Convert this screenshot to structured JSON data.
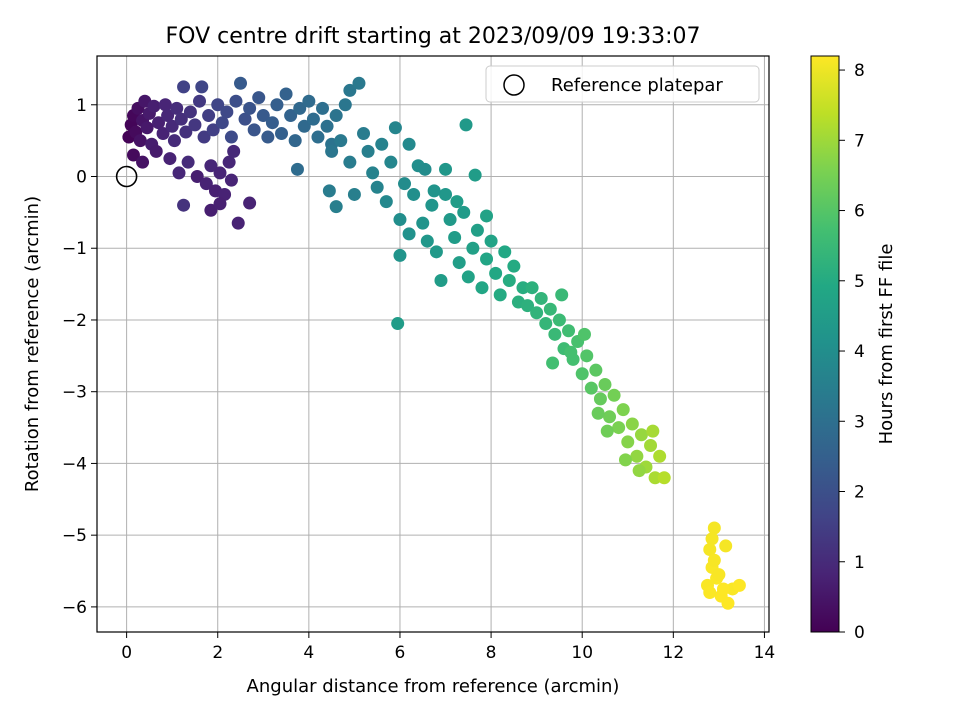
{
  "chart_data": {
    "type": "scatter",
    "title": "FOV centre drift starting at 2023/09/09 19:33:07",
    "xlabel": "Angular distance from reference (arcmin)",
    "ylabel": "Rotation from reference (arcmin)",
    "xlim": [
      -0.65,
      14.1
    ],
    "ylim": [
      -6.35,
      1.68
    ],
    "xticks": [
      "0",
      "2",
      "4",
      "6",
      "8",
      "10",
      "12",
      "14"
    ],
    "yticks": [
      "1",
      "0",
      "−1",
      "−2",
      "−3",
      "−4",
      "−5",
      "−6"
    ],
    "grid": true,
    "legend": {
      "position": "top-right",
      "entries": [
        "Reference platepar"
      ]
    },
    "reference_point": {
      "x": 0,
      "y": 0
    },
    "colorbar": {
      "label": "Hours from first FF file",
      "range": [
        0,
        8.2
      ],
      "ticks": [
        "0",
        "1",
        "2",
        "3",
        "4",
        "5",
        "6",
        "7",
        "8"
      ],
      "colormap": "viridis"
    },
    "points": [
      {
        "x": 0.05,
        "y": 0.55,
        "h": 0.05
      },
      {
        "x": 0.1,
        "y": 0.72,
        "h": 0.1
      },
      {
        "x": 0.15,
        "y": 0.85,
        "h": 0.15
      },
      {
        "x": 0.2,
        "y": 0.62,
        "h": 0.2
      },
      {
        "x": 0.25,
        "y": 0.95,
        "h": 0.3
      },
      {
        "x": 0.3,
        "y": 0.5,
        "h": 0.4
      },
      {
        "x": 0.35,
        "y": 0.78,
        "h": 0.45
      },
      {
        "x": 0.4,
        "y": 1.05,
        "h": 0.5
      },
      {
        "x": 0.45,
        "y": 0.68,
        "h": 0.55
      },
      {
        "x": 0.5,
        "y": 0.88,
        "h": 0.6
      },
      {
        "x": 0.55,
        "y": 0.45,
        "h": 0.65
      },
      {
        "x": 0.6,
        "y": 0.98,
        "h": 0.7
      },
      {
        "x": 0.7,
        "y": 0.75,
        "h": 0.75
      },
      {
        "x": 0.8,
        "y": 0.6,
        "h": 0.8
      },
      {
        "x": 0.85,
        "y": 1.0,
        "h": 0.85
      },
      {
        "x": 0.9,
        "y": 0.85,
        "h": 0.9
      },
      {
        "x": 1.0,
        "y": 0.7,
        "h": 0.95
      },
      {
        "x": 1.05,
        "y": 0.5,
        "h": 1.0
      },
      {
        "x": 1.1,
        "y": 0.95,
        "h": 1.05
      },
      {
        "x": 1.2,
        "y": 0.8,
        "h": 1.1
      },
      {
        "x": 1.25,
        "y": 1.25,
        "h": 1.6
      },
      {
        "x": 1.3,
        "y": 0.62,
        "h": 1.15
      },
      {
        "x": 1.4,
        "y": 0.9,
        "h": 1.2
      },
      {
        "x": 1.5,
        "y": 0.72,
        "h": 1.3
      },
      {
        "x": 1.6,
        "y": 1.05,
        "h": 1.35
      },
      {
        "x": 1.7,
        "y": 0.55,
        "h": 1.4
      },
      {
        "x": 1.8,
        "y": 0.85,
        "h": 1.5
      },
      {
        "x": 1.65,
        "y": 1.25,
        "h": 1.7
      },
      {
        "x": 1.9,
        "y": 0.65,
        "h": 1.55
      },
      {
        "x": 2.0,
        "y": 1.0,
        "h": 1.7
      },
      {
        "x": 2.1,
        "y": 0.75,
        "h": 1.75
      },
      {
        "x": 2.2,
        "y": 0.9,
        "h": 1.8
      },
      {
        "x": 2.3,
        "y": 0.55,
        "h": 1.85
      },
      {
        "x": 2.4,
        "y": 1.05,
        "h": 1.95
      },
      {
        "x": 2.5,
        "y": 1.3,
        "h": 2.3
      },
      {
        "x": 2.6,
        "y": 0.8,
        "h": 2.0
      },
      {
        "x": 2.7,
        "y": 0.95,
        "h": 2.1
      },
      {
        "x": 2.8,
        "y": 0.65,
        "h": 2.15
      },
      {
        "x": 2.9,
        "y": 1.1,
        "h": 2.2
      },
      {
        "x": 3.0,
        "y": 0.85,
        "h": 2.3
      },
      {
        "x": 3.1,
        "y": 0.55,
        "h": 2.35
      },
      {
        "x": 3.2,
        "y": 0.75,
        "h": 2.4
      },
      {
        "x": 3.3,
        "y": 1.0,
        "h": 2.45
      },
      {
        "x": 3.4,
        "y": 0.6,
        "h": 2.5
      },
      {
        "x": 3.5,
        "y": 1.15,
        "h": 2.55
      },
      {
        "x": 3.6,
        "y": 0.85,
        "h": 2.6
      },
      {
        "x": 3.7,
        "y": 0.5,
        "h": 2.7
      },
      {
        "x": 3.75,
        "y": 0.1,
        "h": 2.9
      },
      {
        "x": 3.8,
        "y": 0.95,
        "h": 2.75
      },
      {
        "x": 3.9,
        "y": 0.7,
        "h": 2.8
      },
      {
        "x": 4.0,
        "y": 1.05,
        "h": 2.85
      },
      {
        "x": 4.1,
        "y": 0.8,
        "h": 2.9
      },
      {
        "x": 4.2,
        "y": 0.55,
        "h": 2.95
      },
      {
        "x": 4.3,
        "y": 0.95,
        "h": 3.0
      },
      {
        "x": 4.4,
        "y": 0.7,
        "h": 3.05
      },
      {
        "x": 4.5,
        "y": 0.45,
        "h": 3.1
      },
      {
        "x": 4.6,
        "y": 0.85,
        "h": 3.15
      },
      {
        "x": 4.8,
        "y": 1.0,
        "h": 3.2
      },
      {
        "x": 4.9,
        "y": 1.2,
        "h": 3.25
      },
      {
        "x": 5.1,
        "y": 1.3,
        "h": 3.3
      },
      {
        "x": 0.15,
        "y": 0.3,
        "h": 0.2
      },
      {
        "x": 0.35,
        "y": 0.2,
        "h": 0.4
      },
      {
        "x": 0.65,
        "y": 0.35,
        "h": 0.6
      },
      {
        "x": 0.95,
        "y": 0.25,
        "h": 0.8
      },
      {
        "x": 1.15,
        "y": 0.05,
        "h": 0.9
      },
      {
        "x": 1.35,
        "y": 0.2,
        "h": 1.0
      },
      {
        "x": 1.55,
        "y": 0.0,
        "h": 0.7
      },
      {
        "x": 1.75,
        "y": -0.1,
        "h": 0.8
      },
      {
        "x": 1.85,
        "y": 0.15,
        "h": 0.9
      },
      {
        "x": 1.95,
        "y": -0.2,
        "h": 0.75
      },
      {
        "x": 2.05,
        "y": 0.05,
        "h": 0.85
      },
      {
        "x": 2.15,
        "y": -0.25,
        "h": 0.8
      },
      {
        "x": 2.25,
        "y": 0.2,
        "h": 0.9
      },
      {
        "x": 1.25,
        "y": -0.4,
        "h": 1.2
      },
      {
        "x": 1.85,
        "y": -0.47,
        "h": 0.7
      },
      {
        "x": 2.05,
        "y": -0.38,
        "h": 0.75
      },
      {
        "x": 2.45,
        "y": -0.65,
        "h": 0.8
      },
      {
        "x": 2.7,
        "y": -0.37,
        "h": 0.8
      },
      {
        "x": 2.3,
        "y": -0.05,
        "h": 0.85
      },
      {
        "x": 2.35,
        "y": 0.35,
        "h": 0.95
      },
      {
        "x": 4.5,
        "y": 0.35,
        "h": 3.2
      },
      {
        "x": 4.7,
        "y": 0.5,
        "h": 3.3
      },
      {
        "x": 4.9,
        "y": 0.2,
        "h": 3.4
      },
      {
        "x": 5.0,
        "y": -0.25,
        "h": 3.5
      },
      {
        "x": 4.45,
        "y": -0.2,
        "h": 3.4
      },
      {
        "x": 4.6,
        "y": -0.42,
        "h": 3.5
      },
      {
        "x": 5.2,
        "y": 0.6,
        "h": 3.4
      },
      {
        "x": 5.3,
        "y": 0.35,
        "h": 3.5
      },
      {
        "x": 5.4,
        "y": 0.05,
        "h": 3.6
      },
      {
        "x": 5.5,
        "y": -0.15,
        "h": 3.65
      },
      {
        "x": 5.6,
        "y": 0.45,
        "h": 3.6
      },
      {
        "x": 5.7,
        "y": -0.35,
        "h": 3.8
      },
      {
        "x": 5.8,
        "y": 0.2,
        "h": 3.75
      },
      {
        "x": 5.9,
        "y": 0.68,
        "h": 3.7
      },
      {
        "x": 6.0,
        "y": -0.6,
        "h": 4.0
      },
      {
        "x": 6.1,
        "y": -0.1,
        "h": 3.95
      },
      {
        "x": 6.2,
        "y": 0.45,
        "h": 3.85
      },
      {
        "x": 6.3,
        "y": -0.25,
        "h": 4.05
      },
      {
        "x": 6.4,
        "y": 0.15,
        "h": 4.0
      },
      {
        "x": 6.5,
        "y": -0.65,
        "h": 4.2
      },
      {
        "x": 6.6,
        "y": -0.9,
        "h": 4.3
      },
      {
        "x": 6.7,
        "y": -0.4,
        "h": 4.25
      },
      {
        "x": 6.8,
        "y": -1.05,
        "h": 4.4
      },
      {
        "x": 6.9,
        "y": -1.45,
        "h": 4.5
      },
      {
        "x": 6.0,
        "y": -1.1,
        "h": 4.2
      },
      {
        "x": 6.2,
        "y": -0.8,
        "h": 4.15
      },
      {
        "x": 5.95,
        "y": -2.05,
        "h": 4.5
      },
      {
        "x": 6.55,
        "y": 0.1,
        "h": 3.95
      },
      {
        "x": 7.0,
        "y": -0.25,
        "h": 4.3
      },
      {
        "x": 7.1,
        "y": -0.6,
        "h": 4.4
      },
      {
        "x": 7.2,
        "y": -0.85,
        "h": 4.5
      },
      {
        "x": 7.3,
        "y": -1.2,
        "h": 4.55
      },
      {
        "x": 7.4,
        "y": -0.5,
        "h": 4.45
      },
      {
        "x": 7.45,
        "y": 0.72,
        "h": 4.4
      },
      {
        "x": 7.5,
        "y": -1.4,
        "h": 4.7
      },
      {
        "x": 7.6,
        "y": -1.0,
        "h": 4.65
      },
      {
        "x": 7.7,
        "y": -0.75,
        "h": 4.6
      },
      {
        "x": 7.8,
        "y": -1.55,
        "h": 4.85
      },
      {
        "x": 7.9,
        "y": -1.15,
        "h": 4.8
      },
      {
        "x": 8.0,
        "y": -0.9,
        "h": 4.75
      },
      {
        "x": 8.1,
        "y": -1.35,
        "h": 4.9
      },
      {
        "x": 8.2,
        "y": -1.65,
        "h": 5.0
      },
      {
        "x": 8.3,
        "y": -1.05,
        "h": 4.9
      },
      {
        "x": 8.4,
        "y": -1.45,
        "h": 5.05
      },
      {
        "x": 8.5,
        "y": -1.25,
        "h": 5.0
      },
      {
        "x": 8.6,
        "y": -1.75,
        "h": 5.15
      },
      {
        "x": 8.7,
        "y": -1.55,
        "h": 5.1
      },
      {
        "x": 7.65,
        "y": 0.02,
        "h": 4.5
      },
      {
        "x": 7.9,
        "y": -0.55,
        "h": 4.7
      },
      {
        "x": 7.25,
        "y": -0.35,
        "h": 4.5
      },
      {
        "x": 7.0,
        "y": 0.1,
        "h": 4.3
      },
      {
        "x": 6.75,
        "y": -0.2,
        "h": 4.2
      },
      {
        "x": 8.8,
        "y": -1.8,
        "h": 5.2
      },
      {
        "x": 8.9,
        "y": -1.55,
        "h": 5.2
      },
      {
        "x": 9.0,
        "y": -1.9,
        "h": 5.3
      },
      {
        "x": 9.1,
        "y": -1.7,
        "h": 5.35
      },
      {
        "x": 9.2,
        "y": -2.05,
        "h": 5.4
      },
      {
        "x": 9.3,
        "y": -1.85,
        "h": 5.45
      },
      {
        "x": 9.4,
        "y": -2.2,
        "h": 5.5
      },
      {
        "x": 9.5,
        "y": -2.0,
        "h": 5.55
      },
      {
        "x": 9.6,
        "y": -2.4,
        "h": 5.6
      },
      {
        "x": 9.7,
        "y": -2.15,
        "h": 5.65
      },
      {
        "x": 9.8,
        "y": -2.55,
        "h": 5.75
      },
      {
        "x": 9.9,
        "y": -2.3,
        "h": 5.8
      },
      {
        "x": 10.0,
        "y": -2.75,
        "h": 5.9
      },
      {
        "x": 10.1,
        "y": -2.5,
        "h": 5.95
      },
      {
        "x": 10.2,
        "y": -2.95,
        "h": 6.05
      },
      {
        "x": 10.3,
        "y": -2.7,
        "h": 6.1
      },
      {
        "x": 9.35,
        "y": -2.6,
        "h": 5.7
      },
      {
        "x": 9.55,
        "y": -1.65,
        "h": 5.5
      },
      {
        "x": 9.75,
        "y": -2.45,
        "h": 5.75
      },
      {
        "x": 10.05,
        "y": -2.2,
        "h": 5.9
      },
      {
        "x": 10.4,
        "y": -3.1,
        "h": 6.25
      },
      {
        "x": 10.5,
        "y": -2.9,
        "h": 6.3
      },
      {
        "x": 10.6,
        "y": -3.35,
        "h": 6.4
      },
      {
        "x": 10.7,
        "y": -3.05,
        "h": 6.45
      },
      {
        "x": 10.8,
        "y": -3.5,
        "h": 6.55
      },
      {
        "x": 10.9,
        "y": -3.25,
        "h": 6.6
      },
      {
        "x": 11.0,
        "y": -3.7,
        "h": 6.7
      },
      {
        "x": 11.1,
        "y": -3.45,
        "h": 6.75
      },
      {
        "x": 11.2,
        "y": -3.9,
        "h": 6.85
      },
      {
        "x": 11.3,
        "y": -3.6,
        "h": 6.9
      },
      {
        "x": 11.4,
        "y": -4.05,
        "h": 7.0
      },
      {
        "x": 11.5,
        "y": -3.75,
        "h": 7.05
      },
      {
        "x": 11.6,
        "y": -4.2,
        "h": 7.15
      },
      {
        "x": 11.7,
        "y": -3.9,
        "h": 7.2
      },
      {
        "x": 11.8,
        "y": -4.2,
        "h": 7.3
      },
      {
        "x": 11.55,
        "y": -3.55,
        "h": 7.1
      },
      {
        "x": 10.55,
        "y": -3.55,
        "h": 6.4
      },
      {
        "x": 10.95,
        "y": -3.95,
        "h": 6.65
      },
      {
        "x": 11.25,
        "y": -4.1,
        "h": 6.85
      },
      {
        "x": 10.35,
        "y": -3.3,
        "h": 6.3
      },
      {
        "x": 12.8,
        "y": -5.2,
        "h": 8.1
      },
      {
        "x": 12.9,
        "y": -4.9,
        "h": 8.1
      },
      {
        "x": 12.85,
        "y": -5.45,
        "h": 8.15
      },
      {
        "x": 12.75,
        "y": -5.7,
        "h": 8.15
      },
      {
        "x": 12.95,
        "y": -5.6,
        "h": 8.15
      },
      {
        "x": 13.05,
        "y": -5.85,
        "h": 8.2
      },
      {
        "x": 13.15,
        "y": -5.15,
        "h": 8.1
      },
      {
        "x": 13.2,
        "y": -5.95,
        "h": 8.2
      },
      {
        "x": 13.3,
        "y": -5.75,
        "h": 8.15
      },
      {
        "x": 13.45,
        "y": -5.7,
        "h": 8.2
      },
      {
        "x": 12.9,
        "y": -5.35,
        "h": 8.12
      },
      {
        "x": 12.8,
        "y": -5.8,
        "h": 8.18
      },
      {
        "x": 13.0,
        "y": -5.55,
        "h": 8.14
      },
      {
        "x": 12.85,
        "y": -5.05,
        "h": 8.1
      },
      {
        "x": 13.1,
        "y": -5.75,
        "h": 8.2
      }
    ]
  }
}
